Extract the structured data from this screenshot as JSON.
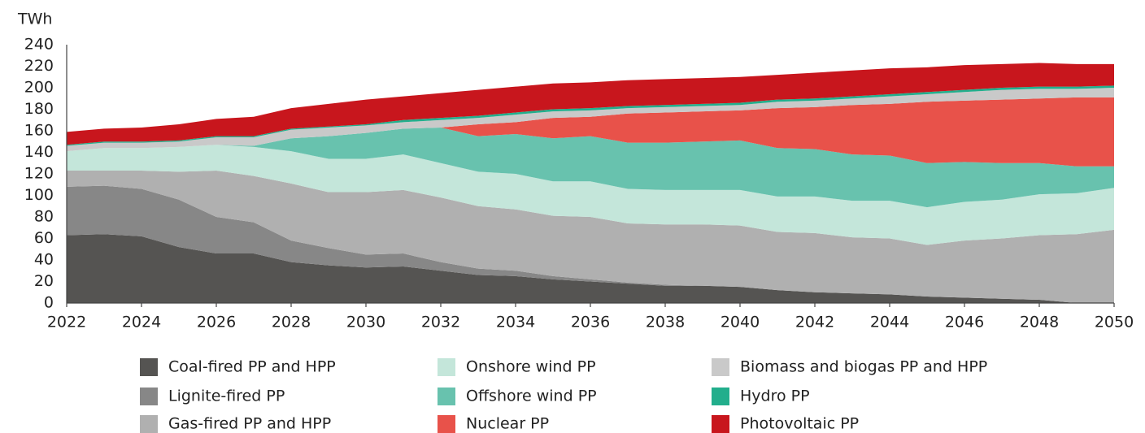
{
  "chart_data": {
    "type": "stacked_area",
    "y_axis_label": "TWh",
    "x": [
      2022,
      2023,
      2024,
      2025,
      2026,
      2027,
      2028,
      2029,
      2030,
      2031,
      2032,
      2033,
      2034,
      2035,
      2036,
      2037,
      2038,
      2039,
      2040,
      2041,
      2042,
      2043,
      2044,
      2045,
      2046,
      2047,
      2048,
      2049,
      2050
    ],
    "xlim": [
      2022,
      2050
    ],
    "xticks": [
      2022,
      2024,
      2026,
      2028,
      2030,
      2032,
      2034,
      2036,
      2038,
      2040,
      2042,
      2044,
      2046,
      2048,
      2050
    ],
    "ylim": [
      0,
      240
    ],
    "yticks": [
      0,
      20,
      40,
      60,
      80,
      100,
      120,
      140,
      160,
      180,
      200,
      220,
      240
    ],
    "grid": false,
    "series": [
      {
        "name": "Coal-fired PP and HPP",
        "color": "#555452",
        "values": [
          63,
          64,
          62,
          52,
          46,
          46,
          38,
          35,
          33,
          34,
          30,
          26,
          25,
          22,
          20,
          18,
          16,
          16,
          15,
          12,
          10,
          9,
          8,
          6,
          5,
          4,
          3,
          0,
          0
        ]
      },
      {
        "name": "Lignite-fired PP",
        "color": "#878787",
        "values": [
          45,
          45,
          44,
          44,
          34,
          29,
          20,
          16,
          12,
          12,
          8,
          6,
          5,
          3,
          2,
          1,
          1,
          0,
          0,
          0,
          0,
          0,
          0,
          0,
          0,
          0,
          0,
          0,
          0
        ]
      },
      {
        "name": "Gas-fired PP and HPP",
        "color": "#b0b0b0",
        "values": [
          15,
          14,
          17,
          26,
          43,
          43,
          53,
          52,
          58,
          59,
          60,
          58,
          57,
          56,
          58,
          55,
          56,
          57,
          57,
          54,
          55,
          52,
          52,
          48,
          53,
          56,
          60,
          64,
          68
        ]
      },
      {
        "name": "Onshore wind PP",
        "color": "#c4e6da",
        "values": [
          18,
          21,
          21,
          23,
          24,
          27,
          30,
          31,
          31,
          33,
          32,
          32,
          33,
          32,
          33,
          32,
          32,
          32,
          33,
          33,
          34,
          34,
          35,
          35,
          36,
          36,
          38,
          38,
          39
        ]
      },
      {
        "name": "Offshore wind PP",
        "color": "#68c2ae",
        "values": [
          0,
          0,
          0,
          0,
          0,
          1,
          12,
          21,
          24,
          24,
          33,
          33,
          37,
          40,
          42,
          43,
          44,
          45,
          46,
          45,
          44,
          43,
          42,
          41,
          37,
          34,
          29,
          25,
          20
        ]
      },
      {
        "name": "Nuclear PP",
        "color": "#e8524a",
        "values": [
          0,
          0,
          0,
          0,
          0,
          0,
          0,
          0,
          0,
          0,
          0,
          11,
          11,
          19,
          18,
          27,
          28,
          28,
          28,
          37,
          39,
          46,
          48,
          57,
          57,
          59,
          60,
          64,
          64
        ]
      },
      {
        "name": "Biomass and biogas PP and HPP",
        "color": "#c9c9c9",
        "values": [
          5,
          5,
          5,
          5,
          7,
          8,
          8,
          8,
          7,
          6,
          7,
          6,
          7,
          6,
          6,
          5,
          5,
          5,
          5,
          6,
          6,
          6,
          7,
          7,
          8,
          9,
          9,
          8,
          9
        ]
      },
      {
        "name": "Hydro PP",
        "color": "#22ae8c",
        "values": [
          1,
          1,
          1,
          1,
          1,
          1,
          1,
          1,
          1,
          2,
          2,
          2,
          2,
          2,
          2,
          2,
          2,
          2,
          2,
          2,
          2,
          2,
          2,
          2,
          2,
          2,
          2,
          2,
          2
        ]
      },
      {
        "name": "Photovoltaic PP",
        "color": "#c8161d",
        "values": [
          12,
          12,
          13,
          15,
          16,
          18,
          19,
          21,
          23,
          22,
          23,
          24,
          24,
          24,
          24,
          24,
          24,
          24,
          24,
          23,
          24,
          24,
          24,
          23,
          23,
          22,
          22,
          21,
          20
        ]
      }
    ]
  }
}
